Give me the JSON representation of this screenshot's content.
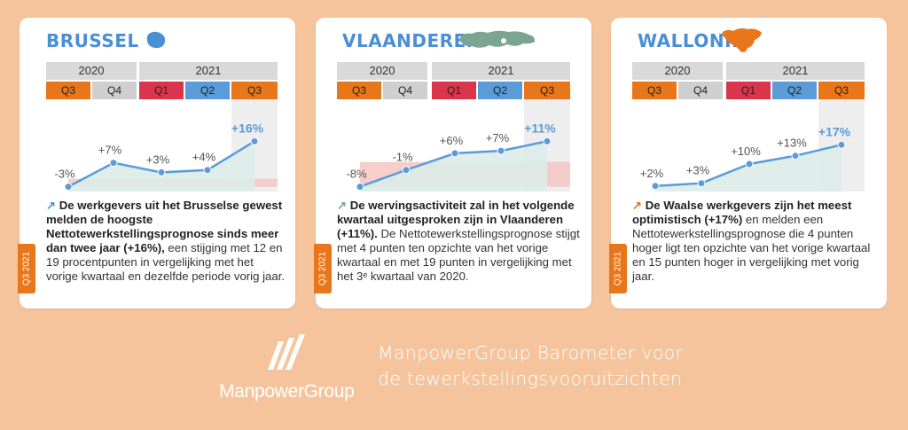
{
  "colors": {
    "background": "#f5c49c",
    "title": "#4a8fd4",
    "line": "#5b9bd8",
    "q_orange": "#e8761a",
    "q_gray": "#cfcfcf",
    "q_red": "#d9364c",
    "q_blue": "#5b9bd8",
    "tag": "#e8761a"
  },
  "cards": [
    {
      "title": "BRUSSEL",
      "map_icon": "brussels-map-icon",
      "years": [
        "2020",
        "2021"
      ],
      "quarters": [
        "Q3",
        "Q4",
        "Q1",
        "Q2",
        "Q3"
      ],
      "arrow": "↗",
      "desc_bold": "De werkgevers uit het Brusselse gewest melden de hoogste Nettotewerkstellingsprognose sinds meer dan twee jaar (+16%),",
      "desc_rest": " een stijging met 12 en 19 procentpunten in vergelijking met het vorige kwartaal en dezelfde periode vorig jaar.",
      "tag": "Q3 2021"
    },
    {
      "title": "VLAANDEREN",
      "map_icon": "flanders-map-icon",
      "years": [
        "2020",
        "2021"
      ],
      "quarters": [
        "Q3",
        "Q4",
        "Q1",
        "Q2",
        "Q3"
      ],
      "arrow": "↗",
      "desc_bold": "De wervingsactiviteit zal in het volgende kwartaal uitgesproken zijn in Vlaanderen (+11%).",
      "desc_rest": " De Nettotewerk­stellingsprognose stijgt met 4 punten ten opzichte van het vorige kwartaal en met 19 punten in vergelijking met het 3ᵉ kwartaal van 2020.",
      "tag": "Q3 2021"
    },
    {
      "title": "WALLONIË",
      "map_icon": "wallonia-map-icon",
      "years": [
        "2020",
        "2021"
      ],
      "quarters": [
        "Q3",
        "Q4",
        "Q1",
        "Q2",
        "Q3"
      ],
      "arrow": "↗",
      "desc_bold": "De Waalse werkgevers zijn het meest optimistisch (+17%)",
      "desc_rest": " en melden een Nettotewerkstellingsprognose die 4 punten hoger ligt ten opzichte van het vorige kwartaal en 15 punten hoger in vergelijking met vorig jaar.",
      "tag": "Q3 2021"
    }
  ],
  "chart_data": [
    {
      "type": "line",
      "region": "BRUSSEL",
      "categories": [
        "Q3 2020",
        "Q4 2020",
        "Q1 2021",
        "Q2 2021",
        "Q3 2021"
      ],
      "values": [
        -3,
        7,
        3,
        4,
        16
      ],
      "labels": [
        "-3%",
        "+7%",
        "+3%",
        "+4%",
        "+16%"
      ],
      "ylim": [
        -5,
        18
      ],
      "baseline_band": -3
    },
    {
      "type": "line",
      "region": "VLAANDEREN",
      "categories": [
        "Q3 2020",
        "Q4 2020",
        "Q1 2021",
        "Q2 2021",
        "Q3 2021"
      ],
      "values": [
        -8,
        -1,
        6,
        7,
        11
      ],
      "labels": [
        "-8%",
        "-1%",
        "+6%",
        "+7%",
        "+11%"
      ],
      "ylim": [
        -10,
        13
      ],
      "baseline_band": -8
    },
    {
      "type": "line",
      "region": "WALLONIË",
      "categories": [
        "Q3 2020",
        "Q4 2020",
        "Q1 2021",
        "Q2 2021",
        "Q3 2021"
      ],
      "values": [
        2,
        3,
        10,
        13,
        17
      ],
      "labels": [
        "+2%",
        "+3%",
        "+10%",
        "+13%",
        "+17%"
      ],
      "ylim": [
        0,
        20
      ],
      "baseline_band": null
    }
  ],
  "brand": {
    "name": "ManpowerGroup",
    "tagline_line1": "ManpowerGroup Barometer voor",
    "tagline_line2": "de tewerkstellingsvooruitzichten"
  }
}
